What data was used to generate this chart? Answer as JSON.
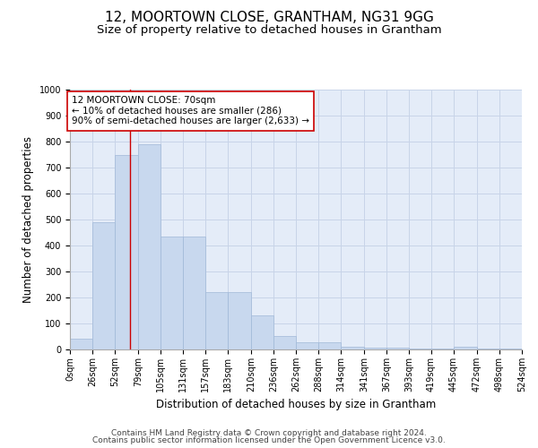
{
  "title": "12, MOORTOWN CLOSE, GRANTHAM, NG31 9GG",
  "subtitle": "Size of property relative to detached houses in Grantham",
  "xlabel": "Distribution of detached houses by size in Grantham",
  "ylabel": "Number of detached properties",
  "bar_values": [
    40,
    490,
    750,
    790,
    435,
    435,
    220,
    220,
    130,
    52,
    27,
    27,
    12,
    8,
    8,
    5,
    5,
    10,
    5,
    5
  ],
  "bin_edges": [
    0,
    26,
    52,
    79,
    105,
    131,
    157,
    183,
    210,
    236,
    262,
    288,
    314,
    341,
    367,
    393,
    419,
    445,
    472,
    498,
    524
  ],
  "tick_labels": [
    "0sqm",
    "26sqm",
    "52sqm",
    "79sqm",
    "105sqm",
    "131sqm",
    "157sqm",
    "183sqm",
    "210sqm",
    "236sqm",
    "262sqm",
    "288sqm",
    "314sqm",
    "341sqm",
    "367sqm",
    "393sqm",
    "419sqm",
    "445sqm",
    "472sqm",
    "498sqm",
    "524sqm"
  ],
  "bar_color": "#c8d8ee",
  "bar_edge_color": "#a0b8d8",
  "vline_x": 70,
  "vline_color": "#cc0000",
  "annotation_text": "12 MOORTOWN CLOSE: 70sqm\n← 10% of detached houses are smaller (286)\n90% of semi-detached houses are larger (2,633) →",
  "annotation_box_color": "white",
  "annotation_box_edge": "#cc0000",
  "ylim": [
    0,
    1000
  ],
  "yticks": [
    0,
    100,
    200,
    300,
    400,
    500,
    600,
    700,
    800,
    900,
    1000
  ],
  "grid_color": "#c8d4e8",
  "bg_color": "#e4ecf8",
  "footer1": "Contains HM Land Registry data © Crown copyright and database right 2024.",
  "footer2": "Contains public sector information licensed under the Open Government Licence v3.0.",
  "title_fontsize": 11,
  "subtitle_fontsize": 9.5,
  "axis_label_fontsize": 8.5,
  "tick_fontsize": 7,
  "annotation_fontsize": 7.5,
  "footer_fontsize": 6.5
}
